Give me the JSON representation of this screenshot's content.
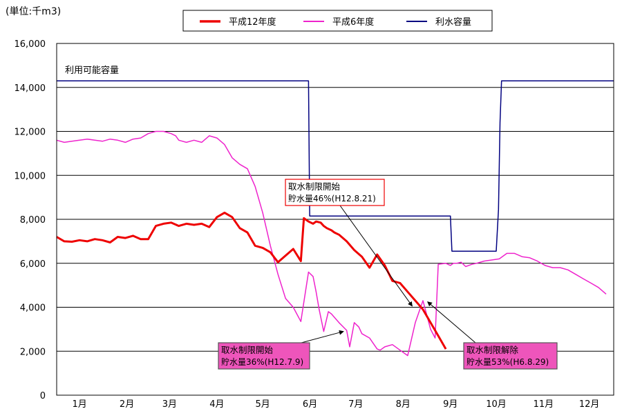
{
  "unit_label": "(単位:千m3)",
  "chart_data": {
    "type": "line",
    "xlim": [
      0,
      365
    ],
    "ylim": [
      0,
      16000
    ],
    "y_ticks": [
      0,
      2000,
      4000,
      6000,
      8000,
      10000,
      12000,
      14000,
      16000
    ],
    "y_tick_labels": [
      "0",
      "2,000",
      "4,000",
      "6,000",
      "8,000",
      "10,000",
      "12,000",
      "14,000",
      "16,000"
    ],
    "x_ticks": [
      15,
      46,
      74,
      105,
      135,
      166,
      196,
      227,
      258,
      288,
      319,
      349
    ],
    "x_tick_labels": [
      "1月",
      "2月",
      "3月",
      "4月",
      "5月",
      "6月",
      "7月",
      "8月",
      "9月",
      "10月",
      "11月",
      "12月"
    ],
    "grid": "horizontal",
    "legend_position": "top-center",
    "colors": {
      "h12": "#ee0000",
      "h6": "#ee22cc",
      "capacity": "#000080",
      "callout_fill": "#ee55bb",
      "callout_border": "#ee0000"
    },
    "series": [
      {
        "name": "平成12年度",
        "x": [
          0,
          5,
          10,
          15,
          20,
          25,
          30,
          35,
          40,
          45,
          50,
          55,
          60,
          65,
          70,
          75,
          80,
          85,
          90,
          95,
          100,
          105,
          110,
          115,
          120,
          125,
          130,
          135,
          140,
          145,
          150,
          155,
          160,
          162,
          165,
          168,
          170,
          173,
          175,
          177,
          180,
          182,
          185,
          190,
          195,
          200,
          205,
          210,
          215,
          220,
          225,
          230,
          235,
          240,
          245,
          250,
          255,
          260,
          265
        ],
        "values": [
          7200,
          7000,
          6980,
          7050,
          7000,
          7100,
          7050,
          6950,
          7200,
          7150,
          7250,
          7100,
          7100,
          7700,
          7800,
          7850,
          7700,
          7800,
          7750,
          7800,
          7650,
          8100,
          8300,
          8100,
          7600,
          7400,
          6800,
          6700,
          6500,
          6050,
          6350,
          6650,
          6100,
          8050,
          7900,
          7800,
          7900,
          7850,
          7700,
          7600,
          7500,
          7400,
          7300,
          7000,
          6600,
          6300,
          5800,
          6400,
          5900,
          5200,
          5100,
          4700,
          4300,
          3900,
          3300,
          2700,
          2100,
          null,
          null
        ]
      },
      {
        "name": "平成6年度",
        "x": [
          0,
          5,
          10,
          15,
          20,
          25,
          30,
          35,
          40,
          45,
          50,
          55,
          60,
          65,
          70,
          75,
          78,
          80,
          85,
          90,
          95,
          100,
          105,
          110,
          115,
          120,
          125,
          130,
          135,
          140,
          145,
          150,
          155,
          160,
          165,
          168,
          170,
          172,
          175,
          178,
          180,
          185,
          190,
          192,
          195,
          198,
          200,
          205,
          210,
          212,
          215,
          220,
          225,
          230,
          235,
          240,
          245,
          248,
          250,
          255,
          258,
          260,
          262,
          265,
          268,
          270,
          272,
          275,
          280,
          285,
          290,
          295,
          300,
          305,
          310,
          315,
          320,
          325,
          330,
          335,
          340,
          345,
          350,
          355,
          360,
          365
        ],
        "values": [
          11600,
          11500,
          11550,
          11600,
          11650,
          11600,
          11550,
          11650,
          11600,
          11500,
          11650,
          11700,
          11900,
          12000,
          12000,
          11900,
          11800,
          11600,
          11500,
          11600,
          11500,
          11800,
          11700,
          11400,
          10800,
          10500,
          10300,
          9500,
          8300,
          6800,
          5500,
          4400,
          4000,
          3350,
          5600,
          5400,
          4700,
          3900,
          2900,
          3800,
          3700,
          3300,
          2950,
          2200,
          3300,
          3100,
          2800,
          2600,
          2100,
          2050,
          2200,
          2300,
          2050,
          1800,
          3300,
          4300,
          3000,
          2600,
          5950,
          6000,
          5900,
          6000,
          6000,
          6050,
          5850,
          5900,
          5950,
          6000,
          6100,
          6150,
          6200,
          6450,
          6450,
          6300,
          6250,
          6100,
          5900,
          5800,
          5800,
          5700,
          5500,
          5300,
          5100,
          4900,
          4600,
          null
        ]
      },
      {
        "name": "利水容量",
        "x": [
          0,
          165,
          165.8,
          258,
          259,
          288,
          289.5,
          290.5,
          291.5,
          365
        ],
        "values": [
          14300,
          14300,
          8150,
          8150,
          6550,
          6550,
          8450,
          12400,
          14300,
          14300
        ]
      }
    ],
    "annotations": [
      {
        "text": "利用可能容量"
      },
      {
        "line1": "取水制限開始",
        "line2": "貯水量46%(H12.8.21)",
        "target_x": 233,
        "target_y": 4050
      },
      {
        "line1": "取水制限開始",
        "line2": "貯水量36%(H12.7.9)",
        "target_x": 188,
        "target_y": 2900
      },
      {
        "line1": "取水制限解除",
        "line2": "貯水量53%(H6.8.29)",
        "target_x": 243,
        "target_y": 4250
      }
    ]
  }
}
